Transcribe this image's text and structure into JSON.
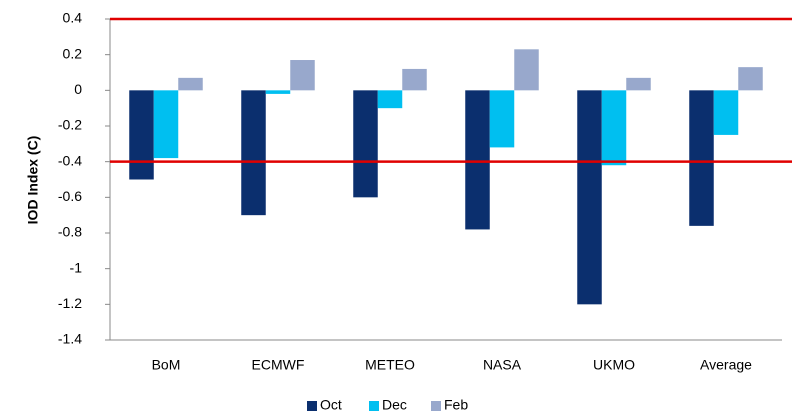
{
  "chart_data": {
    "type": "bar",
    "y_label": "IOD Index (C)",
    "categories": [
      "BoM",
      "ECMWF",
      "METEO",
      "NASA",
      "UKMO",
      "Average"
    ],
    "series": [
      {
        "name": "Oct",
        "color": "#0b2f6e",
        "values": [
          -0.5,
          -0.7,
          -0.6,
          -0.78,
          -1.2,
          -0.76
        ]
      },
      {
        "name": "Dec",
        "color": "#00bff0",
        "values": [
          -0.38,
          -0.02,
          -0.1,
          -0.32,
          -0.42,
          -0.25
        ]
      },
      {
        "name": "Feb",
        "color": "#98a8cc",
        "values": [
          0.07,
          0.17,
          0.12,
          0.23,
          0.07,
          0.13
        ]
      }
    ],
    "ylim": [
      -1.4,
      0.4
    ],
    "yticks": [
      0.4,
      0.2,
      0,
      -0.2,
      -0.4,
      -0.6,
      -0.8,
      -1,
      -1.2,
      -1.4
    ],
    "reference_lines": [
      0.4,
      -0.4
    ],
    "reference_color": "#e00000",
    "grid": false,
    "legend": "bottom"
  }
}
